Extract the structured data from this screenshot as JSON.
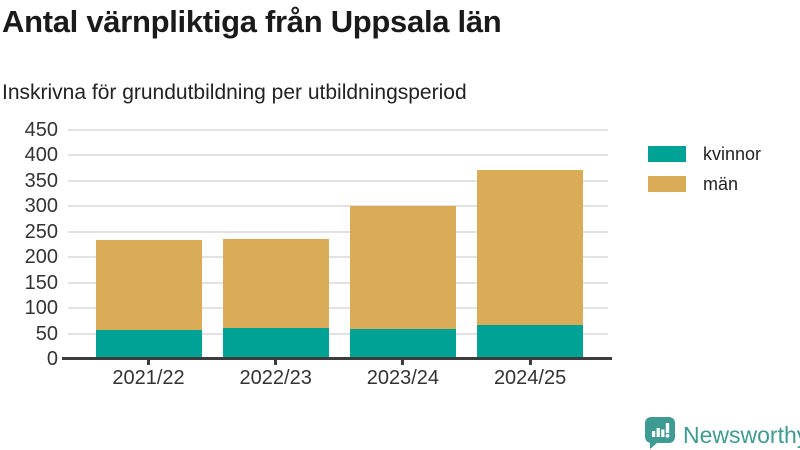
{
  "chart_data": {
    "type": "bar",
    "stacked": true,
    "title": "Antal värnpliktiga från Uppsala län",
    "subtitle": "Inskrivna för grundutbildning per utbildningsperiod",
    "categories": [
      "2021/22",
      "2022/23",
      "2023/24",
      "2024/25"
    ],
    "series": [
      {
        "name": "kvinnor",
        "color": "#00A296",
        "values": [
          58,
          61,
          59,
          67
        ]
      },
      {
        "name": "män",
        "color": "#DBAC57",
        "values": [
          176,
          175,
          242,
          305
        ]
      }
    ],
    "totals": [
      234,
      236,
      301,
      372
    ],
    "xlabel": "",
    "ylabel": "",
    "ylim": [
      0,
      450
    ],
    "yticks": [
      0,
      50,
      100,
      150,
      200,
      250,
      300,
      350,
      400,
      450
    ],
    "grid": "horizontal",
    "legend_position": "right",
    "colors": {
      "gridline": "#e2e2e2",
      "axis_line": "#3c3c3c",
      "tick_label": "#333333",
      "text": "#1a1a1a"
    }
  },
  "footer": {
    "brand": "Newsworthy",
    "brand_color": "#3E9B94"
  }
}
